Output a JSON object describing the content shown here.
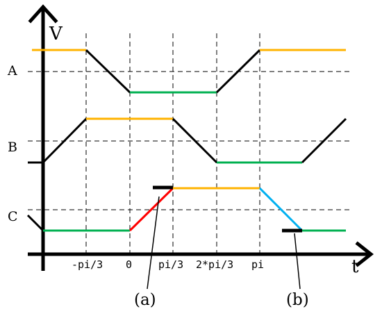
{
  "axes": {
    "y_label": "V",
    "x_label": "t"
  },
  "row_labels": {
    "a": "A",
    "b": "B",
    "c": "C"
  },
  "ticks": {
    "neg_pi_3": "-pi/3",
    "zero": "0",
    "pi_3": "pi/3",
    "two_pi_3": "2*pi/3",
    "pi": "pi"
  },
  "callouts": {
    "a": "(a)",
    "b": "(b)"
  },
  "colors": {
    "axis": "#000000",
    "high_level": "#FFB300",
    "low_level": "#00B050",
    "transition": "#000000",
    "rising_callout": "#FF0000",
    "falling_callout": "#00B0F0"
  }
}
